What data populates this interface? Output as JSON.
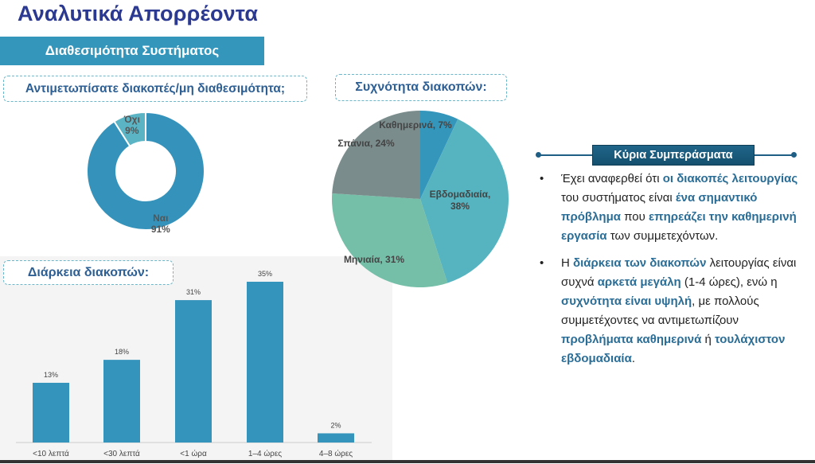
{
  "header": {
    "title": "Αναλυτικά Απορρέοντα",
    "section": "Διαθεσιμότητα Συστήματος"
  },
  "questions": {
    "q1": "Αντιμετωπίσατε διακοπές/μη διαθεσιμότητα;",
    "q2": "Συχνότητα διακοπών:",
    "q3": "Διάρκεια διακοπών:"
  },
  "chart_data": [
    {
      "type": "pie",
      "variant": "donut",
      "title": "Αντιμετωπίσατε διακοπές/μη διαθεσιμότητα;",
      "slices": [
        {
          "label": "Ναι",
          "value": 91,
          "text": "91%",
          "color": "#3593bb"
        },
        {
          "label": "Όχι",
          "value": 9,
          "text": "9%",
          "color": "#5bb4c4"
        }
      ]
    },
    {
      "type": "pie",
      "title": "Συχνότητα διακοπών:",
      "slices": [
        {
          "label": "Καθημερινά, 7%",
          "value": 7,
          "color": "#3596bc"
        },
        {
          "label": "Εβδομαδιαία, 38%",
          "value": 38,
          "color": "#56b4c0"
        },
        {
          "label": "Μηνιαία, 31%",
          "value": 31,
          "color": "#75bea8"
        },
        {
          "label": "Σπάνια, 24%",
          "value": 24,
          "color": "#7a8c8c"
        }
      ]
    },
    {
      "type": "bar",
      "title": "Διάρκεια διακοπών:",
      "categories": [
        "<10 λεπτά",
        "<30 λεπτά",
        "<1 ώρα",
        "1–4 ώρες",
        "4–8 ώρες"
      ],
      "values": [
        13,
        18,
        31,
        35,
        2
      ],
      "labels": [
        "13%",
        "18%",
        "31%",
        "35%",
        "2%"
      ],
      "ylim": [
        0,
        35
      ],
      "color": "#3594bb",
      "grid": false
    }
  ],
  "conclusions": {
    "title": "Κύρια Συμπεράσματα",
    "bullets": [
      [
        {
          "t": "Έχει αναφερθεί ότι ",
          "hl": false
        },
        {
          "t": "οι διακοπές λειτουργίας",
          "hl": true
        },
        {
          "t": " του συστήματος είναι ",
          "hl": false
        },
        {
          "t": "ένα σημαντικό πρόβλημα",
          "hl": true
        },
        {
          "t": " που ",
          "hl": false
        },
        {
          "t": "επηρεάζει την καθημερινή εργασία",
          "hl": true
        },
        {
          "t": " των συμμετεχόντων.",
          "hl": false
        }
      ],
      [
        {
          "t": "Η ",
          "hl": false
        },
        {
          "t": "διάρκεια των διακοπών",
          "hl": true
        },
        {
          "t": " λειτουργίας είναι συχνά ",
          "hl": false
        },
        {
          "t": "αρκετά μεγάλη",
          "hl": true
        },
        {
          "t": " (1-4 ώρες), ενώ η ",
          "hl": false
        },
        {
          "t": "συχνότητα είναι υψηλή",
          "hl": true
        },
        {
          "t": ", με πολλούς συμμετέχοντες να αντιμετωπίζουν ",
          "hl": false
        },
        {
          "t": "προβλήματα καθημερινά",
          "hl": true
        },
        {
          "t": " ή ",
          "hl": false
        },
        {
          "t": "τουλάχιστον εβδομαδιαία",
          "hl": true
        },
        {
          "t": ".",
          "hl": false
        }
      ]
    ]
  }
}
